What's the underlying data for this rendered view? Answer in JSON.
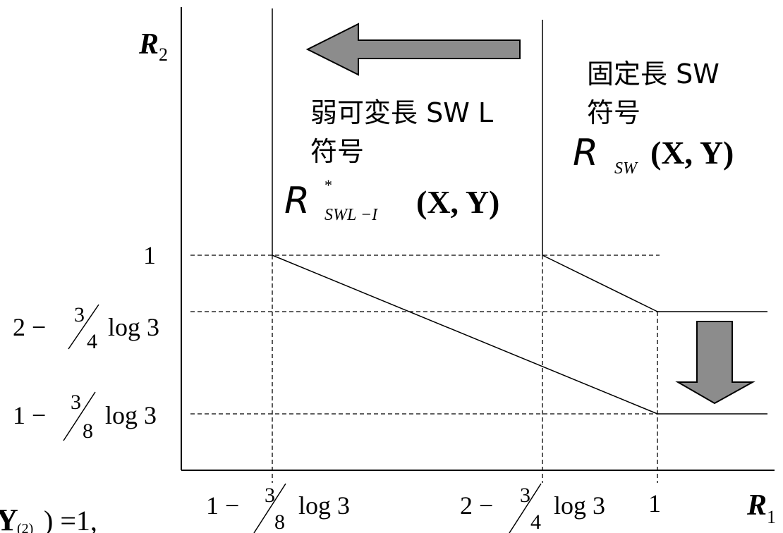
{
  "axes": {
    "y_label": {
      "main": "R",
      "sub": "2"
    },
    "x_label": {
      "main": "R",
      "sub": "1"
    }
  },
  "y_ticks": {
    "one": "1",
    "two_minus": {
      "lead": "2 −",
      "num": "3",
      "den": "4",
      "tail": "log 3"
    },
    "one_minus": {
      "lead": "1 −",
      "num": "3",
      "den": "8",
      "tail": "log 3"
    }
  },
  "x_ticks": {
    "one_minus": {
      "lead": "1 −",
      "num": "3",
      "den": "8",
      "tail": "log 3"
    },
    "two_minus": {
      "lead": "2 −",
      "num": "3",
      "den": "4",
      "tail": "log 3"
    },
    "one": "1"
  },
  "regions": {
    "weak_variable": {
      "label_line1": "弱可変長 SW L",
      "label_line2": "符号",
      "formula": {
        "R": "R",
        "sup": "*",
        "sub": "SWL −I",
        "args": "(X, Y)"
      }
    },
    "fixed": {
      "label_line1": "固定長 SW",
      "label_line2": "符号",
      "formula": {
        "R": "R",
        "sub": "SW",
        "args": "(X, Y)"
      }
    }
  },
  "corner_fragment": {
    "Y": "Y",
    "sub": "(2)",
    "tail": ") =1,"
  },
  "colors": {
    "arrow_fill": "#8c8c8c",
    "arrow_stroke": "#000000",
    "line": "#000000"
  }
}
